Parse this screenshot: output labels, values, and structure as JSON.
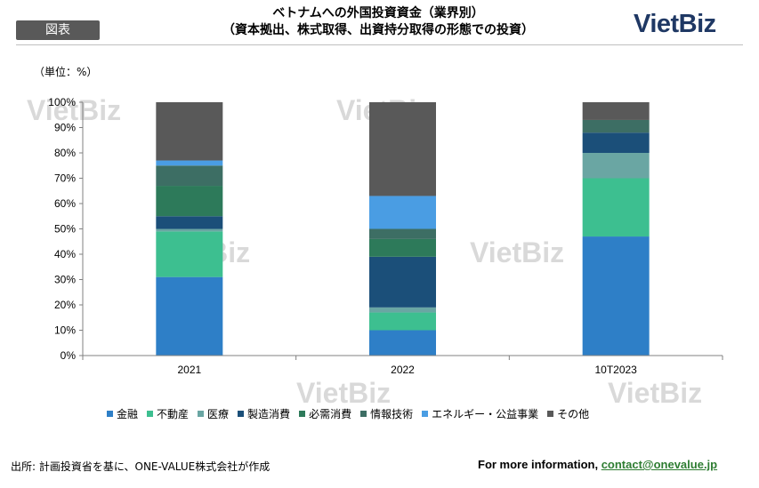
{
  "header": {
    "tag": "図表",
    "title_line1": "ベトナムへの外国投資資金（業界別）",
    "title_line2": "（資本拠出、株式取得、出資持分取得の形態での投資）",
    "logo": "VietBiz"
  },
  "watermark": "VietBiz",
  "unit_label": "（単位：%）",
  "footer": {
    "source": "出所: 計画投資省を基に、ONE-VALUE株式会社が作成",
    "info_label": "For more information,",
    "contact": "contact@onevalue.jp"
  },
  "chart_data": {
    "type": "bar",
    "stacked": true,
    "categories": [
      "2021",
      "2022",
      "10T2023"
    ],
    "ylim": [
      0,
      100
    ],
    "yticks": [
      "0%",
      "10%",
      "20%",
      "30%",
      "40%",
      "50%",
      "60%",
      "70%",
      "80%",
      "90%",
      "100%"
    ],
    "legend_position": "bottom",
    "grid": false,
    "series": [
      {
        "name": "金融",
        "color": "#2e7fc7",
        "values": [
          31,
          10,
          47
        ]
      },
      {
        "name": "不動産",
        "color": "#3dbf90",
        "values": [
          18,
          7,
          23
        ]
      },
      {
        "name": "医療",
        "color": "#6aa6a3",
        "values": [
          1,
          2,
          10
        ]
      },
      {
        "name": "製造消費",
        "color": "#1b4f79",
        "values": [
          5,
          20,
          8
        ]
      },
      {
        "name": "必需消費",
        "color": "#2d7a5a",
        "values": [
          12,
          7,
          0
        ]
      },
      {
        "name": "情報技術",
        "color": "#3d6e64",
        "values": [
          8,
          4,
          5
        ]
      },
      {
        "name": "エネルギー・公益事業",
        "color": "#4a9de3",
        "values": [
          2,
          13,
          0
        ]
      },
      {
        "name": "その他",
        "color": "#595959",
        "values": [
          23,
          37,
          7
        ]
      }
    ]
  }
}
